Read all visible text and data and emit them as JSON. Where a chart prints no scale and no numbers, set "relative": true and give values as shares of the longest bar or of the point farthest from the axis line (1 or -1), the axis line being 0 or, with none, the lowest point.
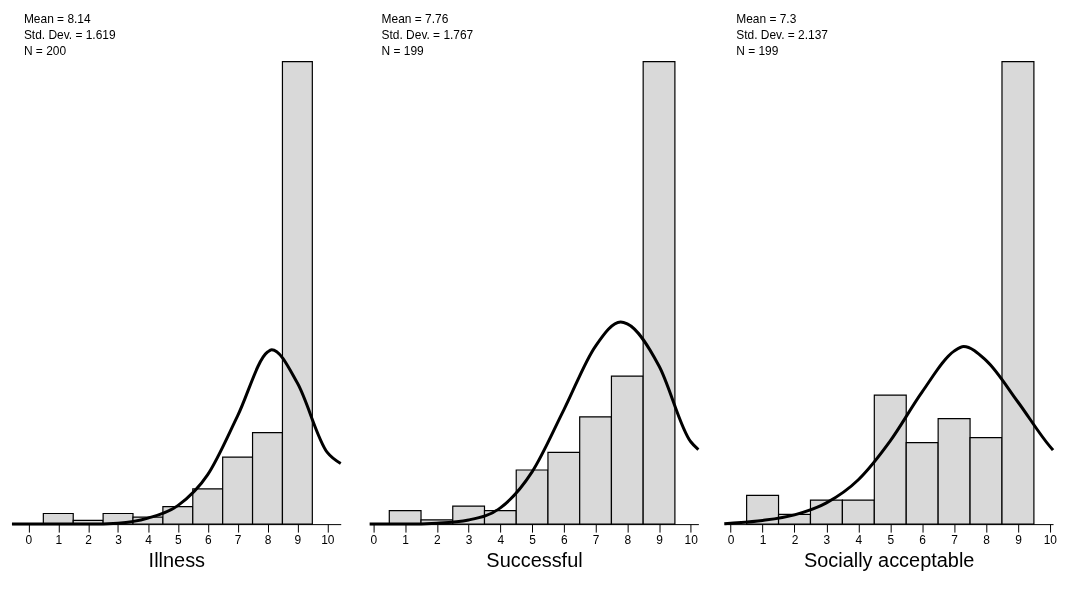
{
  "chart_data": [
    {
      "type": "histogram",
      "relative": true,
      "xlabel": "Illness",
      "annotations": [
        "Mean = 8.14",
        "Std. Dev. = 1.619",
        "N = 200"
      ],
      "bins": [
        -0.5,
        0.5,
        1.5,
        2.5,
        3.5,
        4.5,
        5.5,
        6.5,
        7.5,
        8.5,
        9.5
      ],
      "values": [
        0,
        0.023,
        0.008,
        0.023,
        0.015,
        0.038,
        0.076,
        0.145,
        0.198,
        1
      ],
      "color": "#d9d9d9",
      "xlim": [
        -0.55,
        10.45
      ],
      "xticks": [
        0,
        1,
        2,
        3,
        4,
        5,
        6,
        7,
        8,
        9,
        10
      ],
      "tick_labels": "x",
      "grid": false,
      "series": [
        {
          "type": "line",
          "color": "#000000",
          "x": [
            -0.55,
            1,
            2,
            3,
            4,
            5,
            6,
            7,
            8,
            8.14,
            9,
            10,
            10.45
          ],
          "values": [
            0,
            0,
            0,
            0.002,
            0.013,
            0.04,
            0.107,
            0.234,
            0.372,
            0.377,
            0.305,
            0.155,
            0.131
          ]
        }
      ]
    },
    {
      "type": "histogram",
      "relative": true,
      "xlabel": "Successful",
      "annotations": [
        "Mean = 7.76",
        "Std. Dev. = 1.767",
        "N = 199"
      ],
      "bins": [
        -0.5,
        0.5,
        1.5,
        2.5,
        3.5,
        4.5,
        5.5,
        6.5,
        7.5,
        8.5,
        9.5
      ],
      "values": [
        0,
        0.029,
        0.009,
        0.039,
        0.029,
        0.117,
        0.155,
        0.232,
        0.32,
        1
      ],
      "color": "#d9d9d9",
      "xlim": [
        -0.12,
        10.24
      ],
      "xticks": [
        0,
        1,
        2,
        3,
        4,
        5,
        6,
        7,
        8,
        9,
        10
      ],
      "tick_labels": "x",
      "grid": false,
      "series": [
        {
          "type": "line",
          "color": "#000000",
          "x": [
            -0.12,
            1,
            2,
            3,
            4,
            5,
            6,
            7,
            7.79,
            8,
            9,
            10,
            10.24
          ],
          "values": [
            0,
            0,
            0.002,
            0.009,
            0.035,
            0.113,
            0.247,
            0.385,
            0.437,
            0.433,
            0.342,
            0.178,
            0.161
          ]
        }
      ]
    },
    {
      "type": "histogram",
      "relative": true,
      "xlabel": "Socially acceptable",
      "annotations": [
        "Mean = 7.3",
        "Std. Dev. = 2.137",
        "N = 199"
      ],
      "bins": [
        -0.5,
        0.5,
        1.5,
        2.5,
        3.5,
        4.5,
        5.5,
        6.5,
        7.5,
        8.5,
        9.5
      ],
      "values": [
        0,
        0.062,
        0.021,
        0.052,
        0.052,
        0.279,
        0.176,
        0.228,
        0.187,
        1
      ],
      "color": "#d9d9d9",
      "xlim": [
        -0.2,
        10.1
      ],
      "xticks": [
        0,
        1,
        2,
        3,
        4,
        5,
        6,
        7,
        8,
        9,
        10
      ],
      "tick_labels": "x",
      "grid": false,
      "series": [
        {
          "type": "line",
          "color": "#000000",
          "x": [
            -0.2,
            0,
            1,
            2,
            3,
            4,
            5,
            6,
            7,
            7.3,
            8,
            9,
            10,
            10.1
          ],
          "values": [
            0.001,
            0.002,
            0.008,
            0.02,
            0.046,
            0.096,
            0.18,
            0.286,
            0.374,
            0.384,
            0.354,
            0.264,
            0.168,
            0.16
          ]
        }
      ]
    }
  ]
}
